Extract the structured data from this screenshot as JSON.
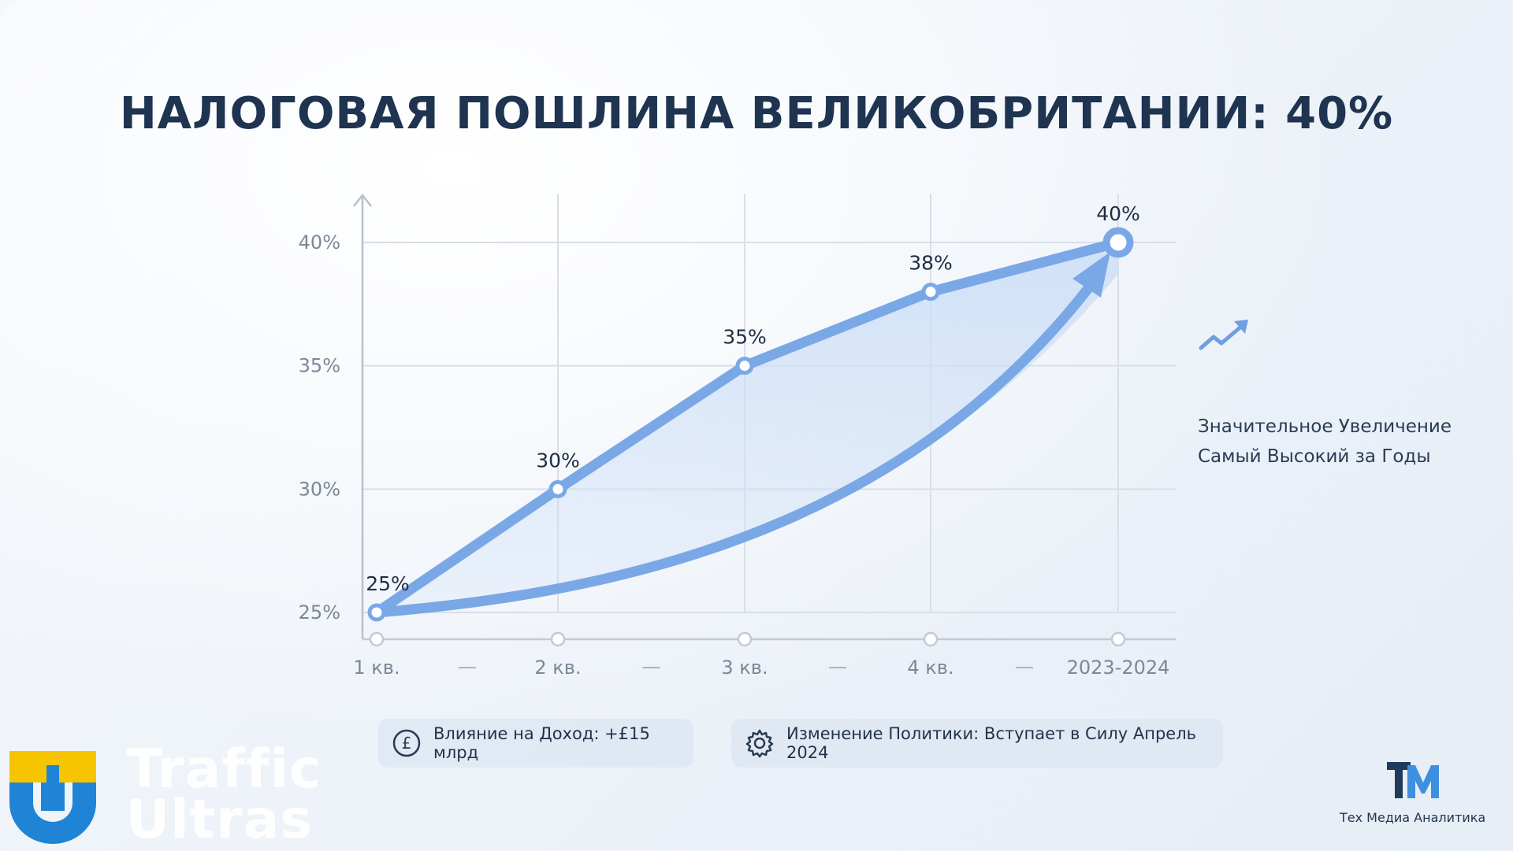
{
  "title": "НАЛОГОВАЯ ПОШЛИНА ВЕЛИКОБРИТАНИИ: 40%",
  "side_note": {
    "icon": "trend-up-icon",
    "line1": "Значительное Увеличение",
    "line2": "Самый Высокий за Годы"
  },
  "footer": {
    "revenue": {
      "icon": "pound-coin-icon",
      "label": "Влияние на Доход: +£15 млрд"
    },
    "policy": {
      "icon": "gear-icon",
      "label": "Изменение Политики: Вступает в Силу Апрель 2024"
    }
  },
  "branding": {
    "left_line1": "Traffic",
    "left_line2": "Ultras",
    "right_caption": "Тех Медиа Аналитика"
  },
  "colors": {
    "title": "#1e3450",
    "line": "#7aa8e6",
    "area": "#cfe0f7",
    "grid": "#d9dfe7",
    "brand_yellow": "#f6c400",
    "brand_blue": "#1f84d6",
    "tm_dark": "#1f3a5a",
    "tm_blue": "#3f8fe0"
  },
  "chart_data": {
    "type": "line",
    "title": "НАЛОГОВАЯ ПОШЛИНА ВЕЛИКОБРИТАНИИ: 40%",
    "categories": [
      "1 кв.",
      "2 кв.",
      "3 кв.",
      "4 кв.",
      "2023-2024"
    ],
    "x_separators": [
      "—",
      "—",
      "—",
      "—"
    ],
    "series": [
      {
        "values": [
          25,
          30,
          35,
          38,
          40
        ],
        "data_labels": [
          "25%",
          "30%",
          "35%",
          "38%",
          "40%"
        ]
      }
    ],
    "y_ticks": [
      25,
      30,
      35,
      40
    ],
    "y_tick_labels": [
      "25%",
      "30%",
      "35%",
      "40%"
    ],
    "ylim": [
      25,
      40
    ],
    "xlabel": "",
    "ylabel": "",
    "grid": true,
    "legend": false,
    "annotations": [
      "curved trend arrow from 1 кв. to 2023-2024"
    ]
  }
}
